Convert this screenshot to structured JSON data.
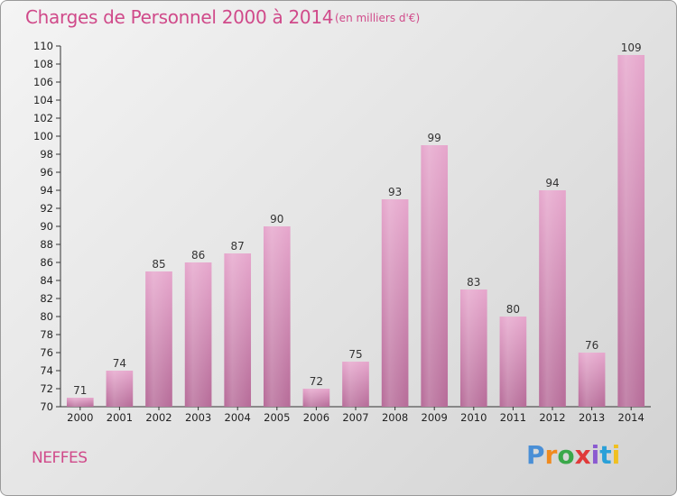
{
  "header": {
    "title": "Charges de Personnel 2000 à 2014",
    "subtitle": "(en milliers d'€)"
  },
  "footer": {
    "commune": "NEFFES",
    "logo_letters": [
      "P",
      "r",
      "o",
      "x",
      "i",
      "t",
      "i"
    ],
    "logo_colors": [
      "#4a8fd6",
      "#f08a1e",
      "#3aa84a",
      "#e03a3a",
      "#8a5ad0",
      "#2aa0d8",
      "#f0c020"
    ]
  },
  "chart_data": {
    "type": "bar",
    "title": "Charges de Personnel 2000 à 2014",
    "subtitle": "(en milliers d'€)",
    "categories": [
      "2000",
      "2001",
      "2002",
      "2003",
      "2004",
      "2005",
      "2006",
      "2007",
      "2008",
      "2009",
      "2010",
      "2011",
      "2012",
      "2013",
      "2014"
    ],
    "values": [
      71,
      74,
      85,
      86,
      87,
      90,
      72,
      75,
      93,
      99,
      83,
      80,
      94,
      76,
      109
    ],
    "ylim": [
      70,
      110
    ],
    "ytick_step": 2,
    "grid": false,
    "bar_color": "#d98fba",
    "legend": "none"
  }
}
